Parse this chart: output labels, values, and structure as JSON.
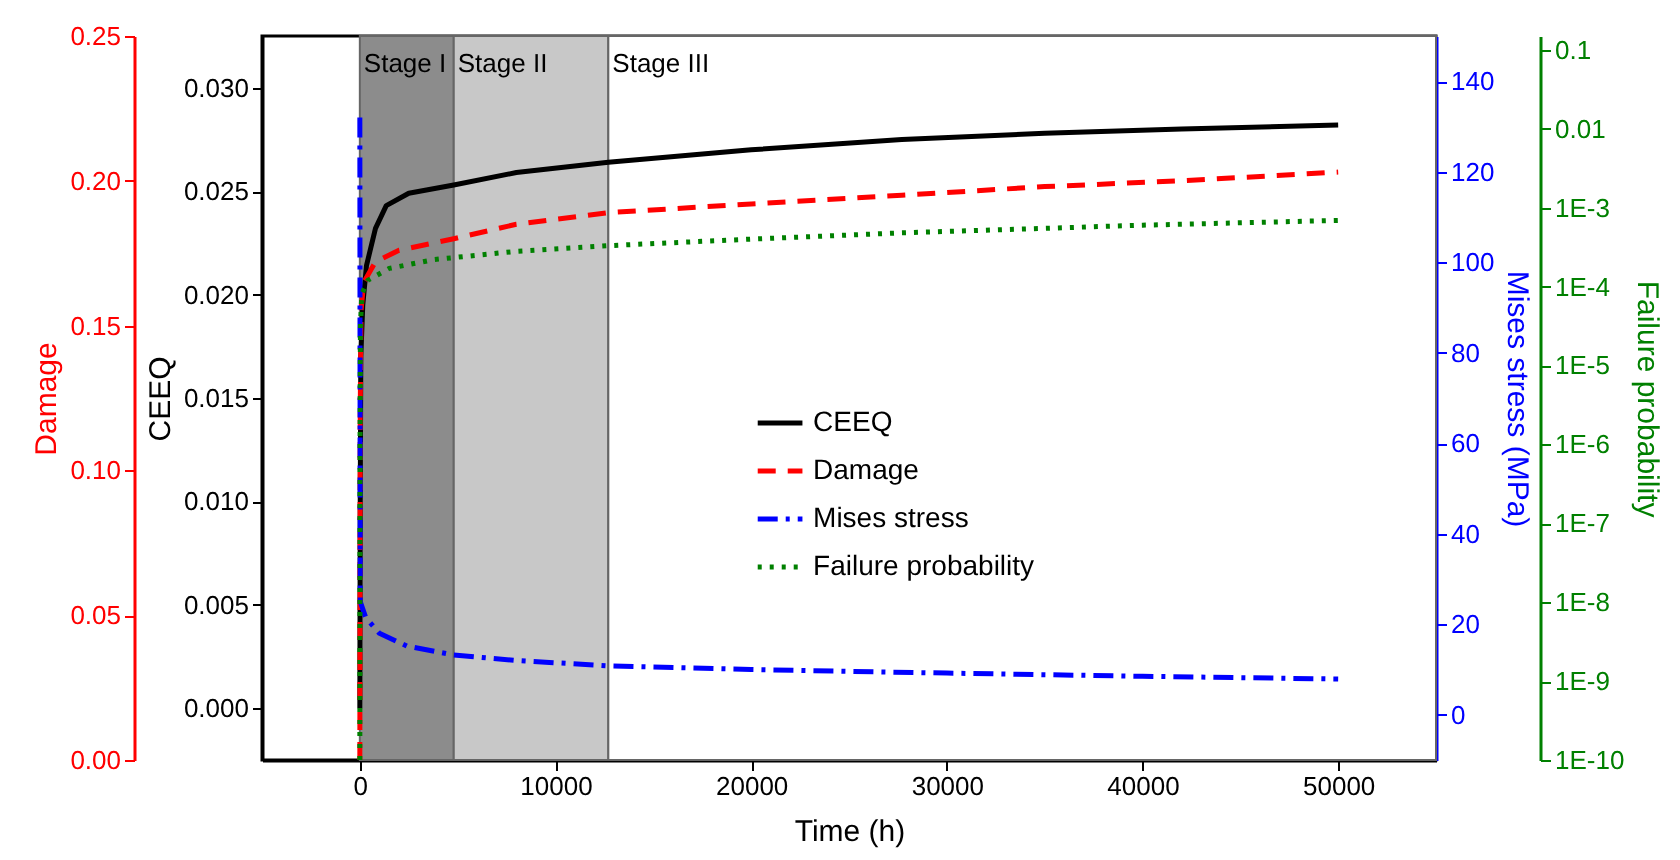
{
  "chart_data": [
    {
      "type": "line",
      "xlabel": "Time (h)",
      "ylabel": "CEEQ",
      "y2label": "Damage",
      "y3label": "Mises stress  (MPa)",
      "xlim": [
        -5000,
        55000
      ],
      "xticks": [
        0,
        10000,
        20000,
        30000,
        40000,
        50000
      ],
      "ylim": [
        -0.0025,
        0.0325
      ],
      "yticks": [
        {
          "value": 0,
          "label": "0.000"
        },
        {
          "value": 0.005,
          "label": "0.005"
        },
        {
          "value": 0.01,
          "label": "0.010"
        },
        {
          "value": 0.015,
          "label": "0.015"
        },
        {
          "value": 0.02,
          "label": "0.020"
        },
        {
          "value": 0.025,
          "label": "0.025"
        },
        {
          "value": 0.03,
          "label": "0.030"
        }
      ],
      "y2lim": [
        0,
        0.25
      ],
      "y2ticks": [
        {
          "value": 0,
          "label": "0.00"
        },
        {
          "value": 0.05,
          "label": "0.05"
        },
        {
          "value": 0.1,
          "label": "0.10"
        },
        {
          "value": 0.15,
          "label": "0.15"
        },
        {
          "value": 0.2,
          "label": "0.20"
        },
        {
          "value": 0.25,
          "label": "0.25"
        }
      ],
      "y3lim": [
        -10,
        150
      ],
      "y3ticks": [
        0,
        20,
        40,
        60,
        80,
        100,
        120,
        140
      ],
      "grid": false,
      "legend": "center",
      "bands": [
        {
          "axis": "x",
          "from": 0,
          "to": 4800,
          "label": "Stage I",
          "color": "#8c8c8c"
        },
        {
          "axis": "x",
          "from": 4800,
          "to": 12700,
          "label": "Stage II",
          "color": "#c8c8c8"
        },
        {
          "axis": "x",
          "from": 12700,
          "to": 55000,
          "label": "Stage III",
          "color": "#ffffff"
        }
      ],
      "series": [
        {
          "name": "CEEQ",
          "color": "#000000",
          "axis": "y",
          "line_style": "solid",
          "x": [
            0,
            20,
            50,
            150,
            340,
            800,
            1350,
            2500,
            4800,
            8000,
            12700,
            20000,
            27700,
            35000,
            42000,
            50000
          ],
          "values": [
            0,
            0.01,
            0.017,
            0.0195,
            0.0214,
            0.0232,
            0.0243,
            0.0249,
            0.0253,
            0.0259,
            0.0264,
            0.027,
            0.0275,
            0.0278,
            0.028,
            0.0282
          ]
        },
        {
          "name": "Damage",
          "color": "#ff0000",
          "axis": "y2",
          "line_style": "dashed",
          "x": [
            0,
            20,
            60,
            200,
            800,
            2000,
            4800,
            8000,
            12700,
            20000,
            27700,
            35000,
            42000,
            50000
          ],
          "values": [
            0,
            0.12,
            0.155,
            0.165,
            0.172,
            0.176,
            0.18,
            0.185,
            0.189,
            0.192,
            0.195,
            0.198,
            0.2,
            0.203
          ]
        },
        {
          "name": "Mises stress",
          "color": "#0000ff",
          "axis": "y3",
          "line_style": "dashdot",
          "x": [
            0,
            20,
            300,
            1000,
            2400,
            4800,
            8000,
            12700,
            20000,
            30000,
            40000,
            50000
          ],
          "values": [
            132,
            25,
            21.5,
            18,
            15.2,
            13.2,
            12,
            10.8,
            10,
            9.2,
            8.5,
            7.9
          ]
        }
      ]
    },
    {
      "type": "line",
      "ylabel": "Failure probability",
      "tick_labels": "y",
      "log": true,
      "grid": false,
      "xlim": [
        -5000,
        55000
      ],
      "ylim": [
        1e-10,
        0.15
      ],
      "yticks": [
        {
          "value": 1e-10,
          "label": "1E-10"
        },
        {
          "value": 1e-09,
          "label": "1E-9"
        },
        {
          "value": 1e-08,
          "label": "1E-8"
        },
        {
          "value": 1e-07,
          "label": "1E-7"
        },
        {
          "value": 1e-06,
          "label": "1E-6"
        },
        {
          "value": 1e-05,
          "label": "1E-5"
        },
        {
          "value": 0.0001,
          "label": "1E-4"
        },
        {
          "value": 0.001,
          "label": "1E-3"
        },
        {
          "value": 0.01,
          "label": "0.01"
        },
        {
          "value": 0.1,
          "label": "0.1"
        }
      ],
      "series": [
        {
          "name": "Failure probability",
          "color": "#008000",
          "line_style": "dotted",
          "x": [
            0,
            10,
            30,
            100,
            400,
            1500,
            3800,
            8000,
            12700,
            20000,
            27700,
            40000,
            50000
          ],
          "values": [
            1e-10,
            1e-06,
            3e-05,
            8e-05,
            0.00012,
            0.00017,
            0.00022,
            0.00028,
            0.00033,
            0.0004,
            0.00048,
            0.0006,
            0.00069
          ]
        }
      ]
    }
  ]
}
